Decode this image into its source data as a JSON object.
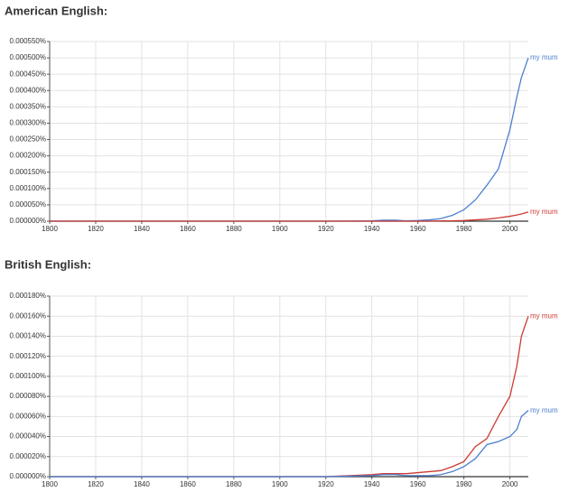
{
  "chart_data": [
    {
      "type": "line",
      "title": "American English:",
      "x": [
        1800,
        1820,
        1840,
        1860,
        1880,
        1900,
        1920,
        1940,
        1945,
        1950,
        1955,
        1960,
        1965,
        1970,
        1975,
        1980,
        1985,
        1990,
        1995,
        2000,
        2003,
        2005,
        2008
      ],
      "series": [
        {
          "name": "my mum",
          "color": "#4a7fd0",
          "values": [
            0,
            0,
            0,
            0,
            0,
            0,
            0,
            1e-06,
            3e-06,
            3e-06,
            1e-06,
            2e-06,
            4e-06,
            8e-06,
            1.8e-05,
            3.5e-05,
            6.5e-05,
            0.00011,
            0.00016,
            0.00028,
            0.00038,
            0.00044,
            0.0005
          ]
        },
        {
          "name": "my mum",
          "color": "#cc3b33",
          "values": [
            0,
            0,
            0,
            0,
            0,
            0,
            0,
            0,
            0,
            0,
            0,
            0,
            0,
            1e-06,
            1e-06,
            2e-06,
            4e-06,
            6e-06,
            1e-05,
            1.5e-05,
            1.9e-05,
            2.2e-05,
            2.8e-05
          ]
        }
      ],
      "xlim": [
        1800,
        2008
      ],
      "xticks": [
        1800,
        1820,
        1840,
        1860,
        1880,
        1900,
        1920,
        1940,
        1960,
        1980,
        2000
      ],
      "ylim": [
        0,
        0.00055
      ],
      "yticks": [
        {
          "value": 0,
          "label": "0.000000%"
        },
        {
          "value": 5e-05,
          "label": "0.000050%"
        },
        {
          "value": 0.0001,
          "label": "0.000100%"
        },
        {
          "value": 0.00015,
          "label": "0.000150%"
        },
        {
          "value": 0.0002,
          "label": "0.000200%"
        },
        {
          "value": 0.00025,
          "label": "0.000250%"
        },
        {
          "value": 0.0003,
          "label": "0.000300%"
        },
        {
          "value": 0.00035,
          "label": "0.000350%"
        },
        {
          "value": 0.0004,
          "label": "0.000400%"
        },
        {
          "value": 0.00045,
          "label": "0.000450%"
        },
        {
          "value": 0.0005,
          "label": "0.000500%"
        },
        {
          "value": 0.00055,
          "label": "0.000550%"
        }
      ],
      "grid": true
    },
    {
      "type": "line",
      "title": "British English:",
      "x": [
        1800,
        1820,
        1840,
        1860,
        1880,
        1900,
        1920,
        1940,
        1945,
        1950,
        1955,
        1960,
        1965,
        1970,
        1975,
        1980,
        1985,
        1990,
        1995,
        2000,
        2003,
        2005,
        2008
      ],
      "series": [
        {
          "name": "my mum",
          "color": "#cc3b33",
          "values": [
            0,
            0,
            0,
            0,
            0,
            0,
            0,
            2e-06,
            3e-06,
            3e-06,
            3e-06,
            4e-06,
            5e-06,
            6e-06,
            1e-05,
            1.5e-05,
            3e-05,
            3.8e-05,
            6e-05,
            8e-05,
            0.00011,
            0.00014,
            0.00016
          ]
        },
        {
          "name": "my mum",
          "color": "#4a7fd0",
          "values": [
            0,
            0,
            0,
            0,
            0,
            0,
            0,
            1e-06,
            2e-06,
            2e-06,
            1e-06,
            1e-06,
            1e-06,
            2e-06,
            5e-06,
            1e-05,
            1.8e-05,
            3.2e-05,
            3.5e-05,
            4e-05,
            4.7e-05,
            6e-05,
            6.6e-05
          ]
        }
      ],
      "xlim": [
        1800,
        2008
      ],
      "xticks": [
        1800,
        1820,
        1840,
        1860,
        1880,
        1900,
        1920,
        1940,
        1960,
        1980,
        2000
      ],
      "ylim": [
        0,
        0.00018
      ],
      "yticks": [
        {
          "value": 0,
          "label": "0.000000%"
        },
        {
          "value": 2e-05,
          "label": "0.000020%"
        },
        {
          "value": 4e-05,
          "label": "0.000040%"
        },
        {
          "value": 6e-05,
          "label": "0.000060%"
        },
        {
          "value": 8e-05,
          "label": "0.000080%"
        },
        {
          "value": 0.0001,
          "label": "0.000100%"
        },
        {
          "value": 0.00012,
          "label": "0.000120%"
        },
        {
          "value": 0.00014,
          "label": "0.000140%"
        },
        {
          "value": 0.00016,
          "label": "0.000160%"
        },
        {
          "value": 0.00018,
          "label": "0.000180%"
        }
      ],
      "grid": true
    }
  ]
}
